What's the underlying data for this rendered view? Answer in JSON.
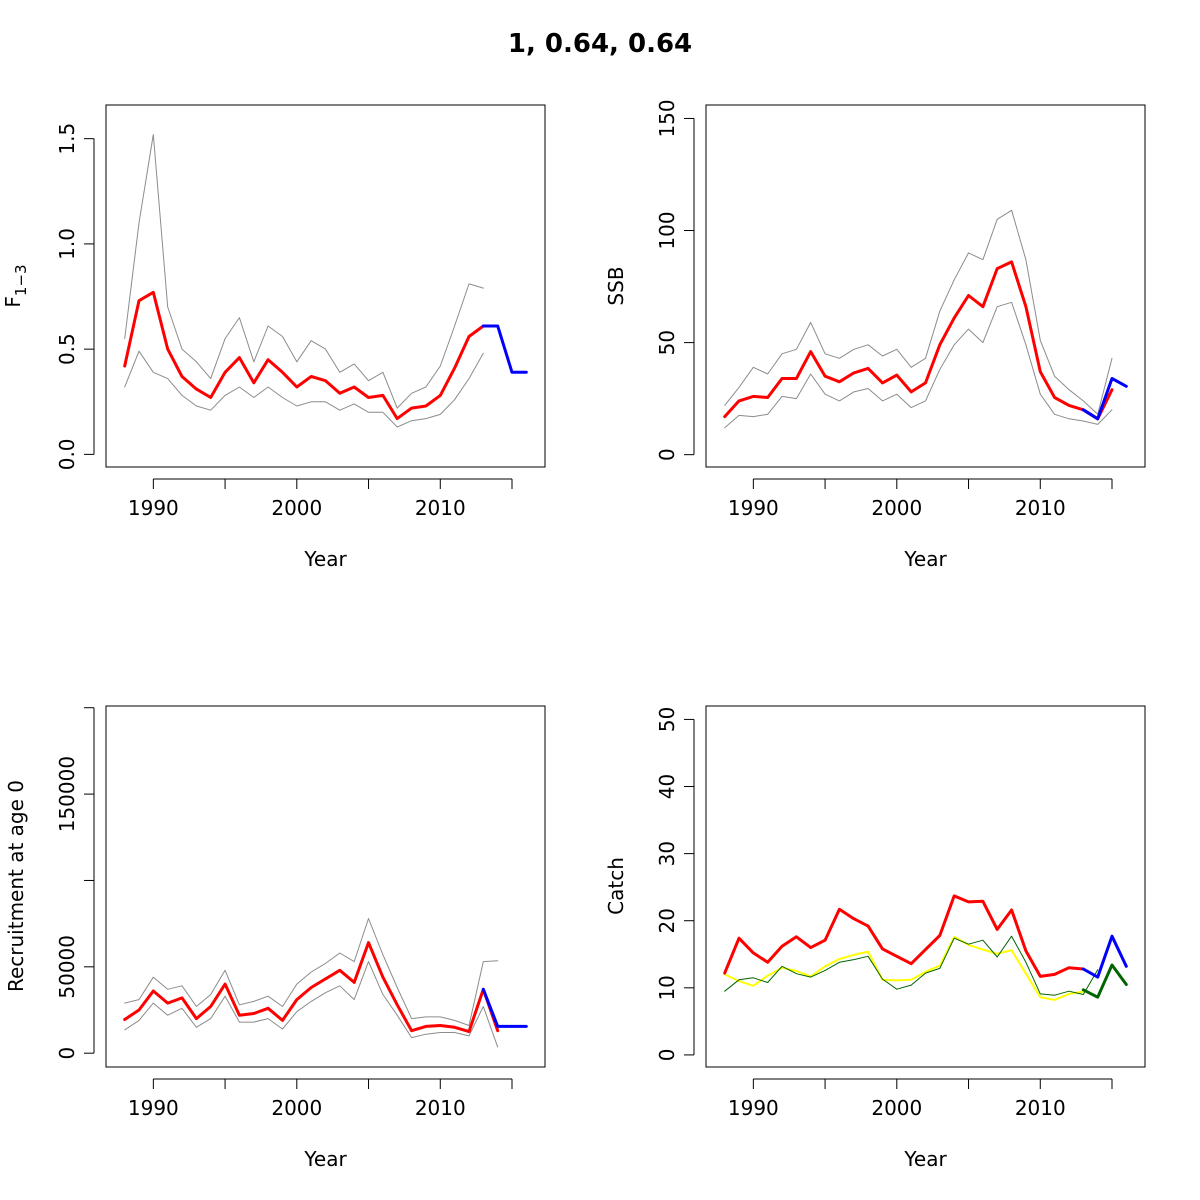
{
  "figure_title": "1, 0.64, 0.64",
  "colors": {
    "estimate": "#ff0000",
    "ci": "#8c8c8c",
    "projection": "#0000ff",
    "observed": "#ffff00",
    "model": "#006400",
    "model_projection": "#006400",
    "axes": "#000000"
  },
  "chart_data": [
    {
      "type": "line",
      "ylabel_main": "F",
      "ylabel_sub": "1−3",
      "xlabel": "Year",
      "xlim": [
        1986.7,
        2017.3
      ],
      "ylim": [
        -0.06,
        1.66
      ],
      "x_ticks": [
        1990,
        1995,
        2000,
        2005,
        2010,
        2015
      ],
      "x_tick_labels": [
        "1990",
        "",
        "2000",
        "",
        "2010",
        ""
      ],
      "y_ticks": [
        0,
        0.5,
        1,
        1.5
      ],
      "y_tick_labels": [
        "0.0",
        "0.5",
        "1.0",
        "1.5"
      ],
      "series": [
        {
          "role": "upper",
          "color": "#8c8c8c",
          "width": 1,
          "x": [
            1988,
            1989,
            1990,
            1991,
            1992,
            1993,
            1994,
            1995,
            1996,
            1997,
            1998,
            1999,
            2000,
            2001,
            2002,
            2003,
            2004,
            2005,
            2006,
            2007,
            2008,
            2009,
            2010,
            2011,
            2012,
            2013
          ],
          "y": [
            0.55,
            1.1,
            1.52,
            0.7,
            0.5,
            0.44,
            0.36,
            0.55,
            0.65,
            0.44,
            0.61,
            0.56,
            0.44,
            0.54,
            0.5,
            0.39,
            0.43,
            0.35,
            0.39,
            0.22,
            0.29,
            0.32,
            0.42,
            0.61,
            0.81,
            0.79
          ]
        },
        {
          "role": "lower",
          "color": "#8c8c8c",
          "width": 1,
          "x": [
            1988,
            1989,
            1990,
            1991,
            1992,
            1993,
            1994,
            1995,
            1996,
            1997,
            1998,
            1999,
            2000,
            2001,
            2002,
            2003,
            2004,
            2005,
            2006,
            2007,
            2008,
            2009,
            2010,
            2011,
            2012,
            2013
          ],
          "y": [
            0.32,
            0.49,
            0.39,
            0.36,
            0.28,
            0.23,
            0.21,
            0.28,
            0.32,
            0.27,
            0.32,
            0.27,
            0.23,
            0.25,
            0.25,
            0.21,
            0.24,
            0.2,
            0.2,
            0.13,
            0.16,
            0.17,
            0.19,
            0.26,
            0.36,
            0.48
          ]
        },
        {
          "role": "estimate",
          "color": "#ff0000",
          "width": 3,
          "x": [
            1988,
            1989,
            1990,
            1991,
            1992,
            1993,
            1994,
            1995,
            1996,
            1997,
            1998,
            1999,
            2000,
            2001,
            2002,
            2003,
            2004,
            2005,
            2006,
            2007,
            2008,
            2009,
            2010,
            2011,
            2012,
            2013
          ],
          "y": [
            0.42,
            0.73,
            0.77,
            0.5,
            0.37,
            0.31,
            0.27,
            0.39,
            0.46,
            0.34,
            0.45,
            0.39,
            0.32,
            0.37,
            0.35,
            0.29,
            0.32,
            0.27,
            0.28,
            0.17,
            0.22,
            0.23,
            0.28,
            0.41,
            0.56,
            0.61
          ]
        },
        {
          "role": "projection",
          "color": "#0000ff",
          "width": 3,
          "x": [
            2013,
            2014,
            2015,
            2016
          ],
          "y": [
            0.61,
            0.61,
            0.39,
            0.39
          ]
        }
      ]
    },
    {
      "type": "line",
      "ylabel": "SSB",
      "xlabel": "Year",
      "xlim": [
        1986.7,
        2017.3
      ],
      "ylim": [
        -5.5,
        156
      ],
      "x_ticks": [
        1990,
        1995,
        2000,
        2005,
        2010,
        2015
      ],
      "x_tick_labels": [
        "1990",
        "",
        "2000",
        "",
        "2010",
        ""
      ],
      "y_ticks": [
        0,
        50,
        100,
        150
      ],
      "y_tick_labels": [
        "0",
        "50",
        "100",
        "150"
      ],
      "series": [
        {
          "role": "upper",
          "color": "#8c8c8c",
          "width": 1,
          "x": [
            1988,
            1989,
            1990,
            1991,
            1992,
            1993,
            1994,
            1995,
            1996,
            1997,
            1998,
            1999,
            2000,
            2001,
            2002,
            2003,
            2004,
            2005,
            2006,
            2007,
            2008,
            2009,
            2010,
            2011,
            2012,
            2013,
            2014,
            2015
          ],
          "y": [
            22,
            30,
            39,
            36,
            45,
            47,
            59,
            45,
            43,
            47,
            49,
            44,
            47,
            39,
            43,
            64,
            78,
            90,
            87,
            105,
            109,
            87,
            51,
            35,
            29,
            24,
            18,
            43
          ]
        },
        {
          "role": "lower",
          "color": "#8c8c8c",
          "width": 1,
          "x": [
            1988,
            1989,
            1990,
            1991,
            1992,
            1993,
            1994,
            1995,
            1996,
            1997,
            1998,
            1999,
            2000,
            2001,
            2002,
            2003,
            2004,
            2005,
            2006,
            2007,
            2008,
            2009,
            2010,
            2011,
            2012,
            2013,
            2014,
            2015
          ],
          "y": [
            12,
            17.5,
            17,
            18,
            26,
            25,
            36,
            27,
            24,
            28,
            29.5,
            24,
            27,
            21,
            24,
            38,
            49,
            56,
            50,
            66,
            68,
            49,
            27,
            18,
            16,
            15,
            13.5,
            20
          ]
        },
        {
          "role": "estimate",
          "color": "#ff0000",
          "width": 3,
          "x": [
            1988,
            1989,
            1990,
            1991,
            1992,
            1993,
            1994,
            1995,
            1996,
            1997,
            1998,
            1999,
            2000,
            2001,
            2002,
            2003,
            2004,
            2005,
            2006,
            2007,
            2008,
            2009,
            2010,
            2011,
            2012,
            2013,
            2014,
            2015
          ],
          "y": [
            17,
            24,
            26,
            25.5,
            34,
            34,
            46,
            35,
            32.5,
            36.5,
            38.5,
            32,
            35.5,
            28,
            32,
            49,
            61,
            71,
            66,
            83,
            86,
            66,
            37,
            25.5,
            22,
            20,
            16,
            29
          ]
        },
        {
          "role": "projection",
          "color": "#0000ff",
          "width": 3,
          "x": [
            2013,
            2014,
            2015,
            2016
          ],
          "y": [
            20,
            16,
            34,
            30.5
          ]
        }
      ]
    },
    {
      "type": "line",
      "ylabel": "Recruitment at age 0",
      "xlabel": "Year",
      "xlim": [
        1986.7,
        2017.3
      ],
      "ylim": [
        -8000,
        201000
      ],
      "x_ticks": [
        1990,
        1995,
        2000,
        2005,
        2010,
        2015
      ],
      "x_tick_labels": [
        "1990",
        "",
        "2000",
        "",
        "2010",
        ""
      ],
      "y_ticks": [
        0,
        50000,
        100000,
        150000,
        200000
      ],
      "y_tick_labels": [
        "0",
        "50000",
        "",
        "150000",
        ""
      ],
      "series": [
        {
          "role": "upper",
          "color": "#8c8c8c",
          "width": 1,
          "x": [
            1988,
            1989,
            1990,
            1991,
            1992,
            1993,
            1994,
            1995,
            1996,
            1997,
            1998,
            1999,
            2000,
            2001,
            2002,
            2003,
            2004,
            2005,
            2006,
            2007,
            2008,
            2009,
            2010,
            2011,
            2012,
            2013,
            2014
          ],
          "y": [
            29000,
            31000,
            44000,
            37000,
            39000,
            27000,
            34000,
            48000,
            28000,
            30000,
            33000,
            27000,
            40000,
            47000,
            52000,
            58000,
            53000,
            78000,
            57000,
            38000,
            20000,
            21000,
            21000,
            19000,
            16000,
            53000,
            53500
          ]
        },
        {
          "role": "lower",
          "color": "#8c8c8c",
          "width": 1,
          "x": [
            1988,
            1989,
            1990,
            1991,
            1992,
            1993,
            1994,
            1995,
            1996,
            1997,
            1998,
            1999,
            2000,
            2001,
            2002,
            2003,
            2004,
            2005,
            2006,
            2007,
            2008,
            2009,
            2010,
            2011,
            2012,
            2013,
            2014
          ],
          "y": [
            13500,
            19000,
            29000,
            22000,
            26000,
            15000,
            20000,
            33000,
            18000,
            18000,
            20000,
            14000,
            24000,
            30000,
            35000,
            39000,
            31000,
            53000,
            34000,
            22000,
            9000,
            11000,
            12000,
            12000,
            10000,
            27000,
            3500
          ]
        },
        {
          "role": "estimate",
          "color": "#ff0000",
          "width": 3,
          "x": [
            1988,
            1989,
            1990,
            1991,
            1992,
            1993,
            1994,
            1995,
            1996,
            1997,
            1998,
            1999,
            2000,
            2001,
            2002,
            2003,
            2004,
            2005,
            2006,
            2007,
            2008,
            2009,
            2010,
            2011,
            2012,
            2013,
            2014
          ],
          "y": [
            19500,
            25000,
            36000,
            29000,
            32000,
            20000,
            27000,
            40000,
            22000,
            23000,
            26000,
            19000,
            31000,
            38000,
            43000,
            48000,
            41000,
            64000,
            44000,
            28000,
            13000,
            15500,
            16000,
            15000,
            12500,
            37000,
            13000
          ]
        },
        {
          "role": "projection",
          "color": "#0000ff",
          "width": 3,
          "x": [
            2013,
            2014,
            2015,
            2016
          ],
          "y": [
            37000,
            15500,
            15500,
            15500
          ]
        }
      ]
    },
    {
      "type": "line",
      "ylabel": "Catch",
      "xlabel": "Year",
      "xlim": [
        1986.7,
        2017.3
      ],
      "ylim": [
        -1.8,
        52
      ],
      "x_ticks": [
        1990,
        1995,
        2000,
        2005,
        2010,
        2015
      ],
      "x_tick_labels": [
        "1990",
        "",
        "2000",
        "",
        "2010",
        ""
      ],
      "y_ticks": [
        0,
        10,
        20,
        30,
        40,
        50
      ],
      "y_tick_labels": [
        "0",
        "10",
        "20",
        "30",
        "40",
        "50"
      ],
      "series": [
        {
          "role": "observed",
          "color": "#ffff00",
          "width": 2,
          "x": [
            1988,
            1989,
            1990,
            1991,
            1992,
            1993,
            1994,
            1995,
            1996,
            1997,
            1998,
            1999,
            2000,
            2001,
            2002,
            2003,
            2004,
            2005,
            2006,
            2007,
            2008,
            2009,
            2010,
            2011,
            2012,
            2013
          ],
          "y": [
            12,
            11,
            10.3,
            11.8,
            13,
            12.5,
            11.7,
            13.2,
            14.3,
            14.9,
            15.4,
            11.2,
            11.1,
            11.2,
            12.4,
            13.3,
            17.6,
            16.4,
            15.7,
            15.1,
            15.6,
            12.1,
            8.6,
            8.2,
            9.1,
            9.4
          ]
        },
        {
          "role": "model",
          "color": "#006400",
          "width": 1,
          "x": [
            1988,
            1989,
            1990,
            1991,
            1992,
            1993,
            1994,
            1995,
            1996,
            1997,
            1998,
            1999,
            2000,
            2001,
            2002,
            2003,
            2004,
            2005,
            2006,
            2007,
            2008,
            2009,
            2010,
            2011,
            2012,
            2013,
            2014
          ],
          "y": [
            9.5,
            11.2,
            11.5,
            10.8,
            13.2,
            12.1,
            11.6,
            12.6,
            13.8,
            14.2,
            14.7,
            11.3,
            9.8,
            10.4,
            12.2,
            12.9,
            17.4,
            16.5,
            17.1,
            14.6,
            17.7,
            13.8,
            9.1,
            8.9,
            9.5,
            9,
            12.7
          ]
        },
        {
          "role": "estimate",
          "color": "#ff0000",
          "width": 3,
          "x": [
            1988,
            1989,
            1990,
            1991,
            1992,
            1993,
            1994,
            1995,
            1996,
            1997,
            1998,
            1999,
            2000,
            2001,
            2002,
            2003,
            2004,
            2005,
            2006,
            2007,
            2008,
            2009,
            2010,
            2011,
            2012,
            2013
          ],
          "y": [
            12.2,
            17.4,
            15.2,
            13.8,
            16.2,
            17.6,
            16,
            17.1,
            21.7,
            20.3,
            19.2,
            15.8,
            14.7,
            13.6,
            15.7,
            17.8,
            23.7,
            22.8,
            22.9,
            18.7,
            21.6,
            15.5,
            11.7,
            12,
            13,
            12.8
          ]
        },
        {
          "role": "projection",
          "color": "#0000ff",
          "width": 3,
          "x": [
            2013,
            2014,
            2015,
            2016
          ],
          "y": [
            12.8,
            11.6,
            17.7,
            13.2
          ]
        },
        {
          "role": "model_projection",
          "color": "#006400",
          "width": 3,
          "x": [
            2013,
            2014,
            2015,
            2016
          ],
          "y": [
            9.7,
            8.6,
            13.4,
            10.5
          ]
        }
      ]
    }
  ]
}
